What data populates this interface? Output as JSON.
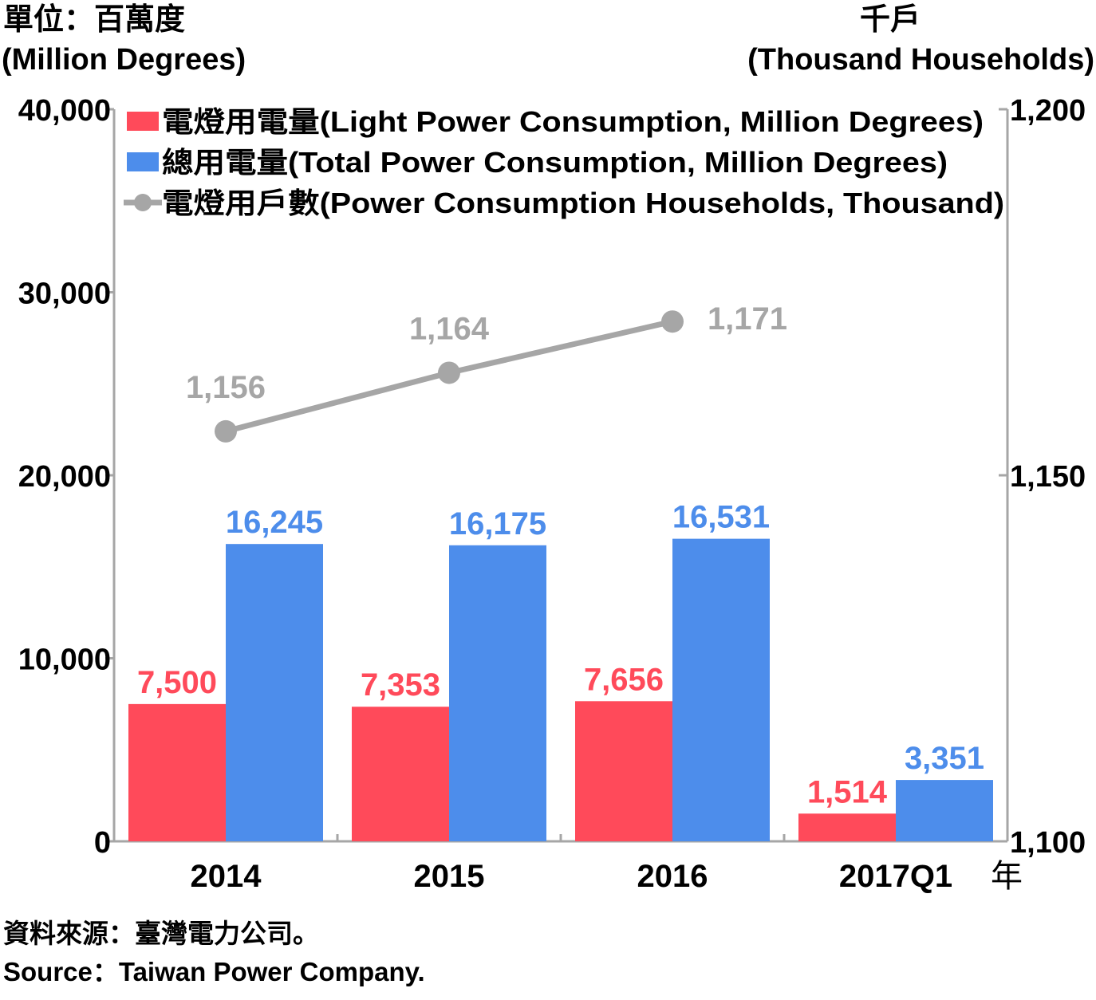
{
  "header": {
    "left_unit_zh": "單位：百萬度",
    "left_unit_en": "(Million Degrees)",
    "right_unit_zh": "千戶",
    "right_unit_en": "(Thousand Households)"
  },
  "source": {
    "zh": "資料來源：臺灣電力公司。",
    "en": "Source：Taiwan Power Company."
  },
  "colors": {
    "light": "#ff4a5a",
    "total": "#4d8deb",
    "households": "#a6a6a6",
    "axis": "#a6a6a6"
  },
  "chart_data": {
    "type": "bar",
    "categories": [
      "2014",
      "2015",
      "2016",
      "2017Q1"
    ],
    "x_unit": "年",
    "left_axis": {
      "ylim": [
        0,
        40000
      ],
      "ticks": [
        "0",
        "10,000",
        "20,000",
        "30,000",
        "40,000"
      ]
    },
    "right_axis": {
      "ylim": [
        1100,
        1200
      ],
      "ticks": [
        "1,100",
        "1,150",
        "1,200"
      ]
    },
    "legend_position": "top",
    "grid": false,
    "series": [
      {
        "name": "電燈用電量(Light Power Consumption, Million Degrees)",
        "kind": "bar",
        "axis": "left",
        "values": [
          7500,
          7353,
          7656,
          1514
        ],
        "labels": [
          "7,500",
          "7,353",
          "7,656",
          "1,514"
        ]
      },
      {
        "name": "總用電量(Total Power Consumption, Million Degrees)",
        "kind": "bar",
        "axis": "left",
        "values": [
          16245,
          16175,
          16531,
          3351
        ],
        "labels": [
          "16,245",
          "16,175",
          "16,531",
          "3,351"
        ]
      },
      {
        "name": "電燈用戶數(Power Consumption Households, Thousand)",
        "kind": "line",
        "axis": "right",
        "values": [
          1156,
          1164,
          1171,
          null
        ],
        "labels": [
          "1,156",
          "1,164",
          "1,171",
          ""
        ]
      }
    ]
  }
}
